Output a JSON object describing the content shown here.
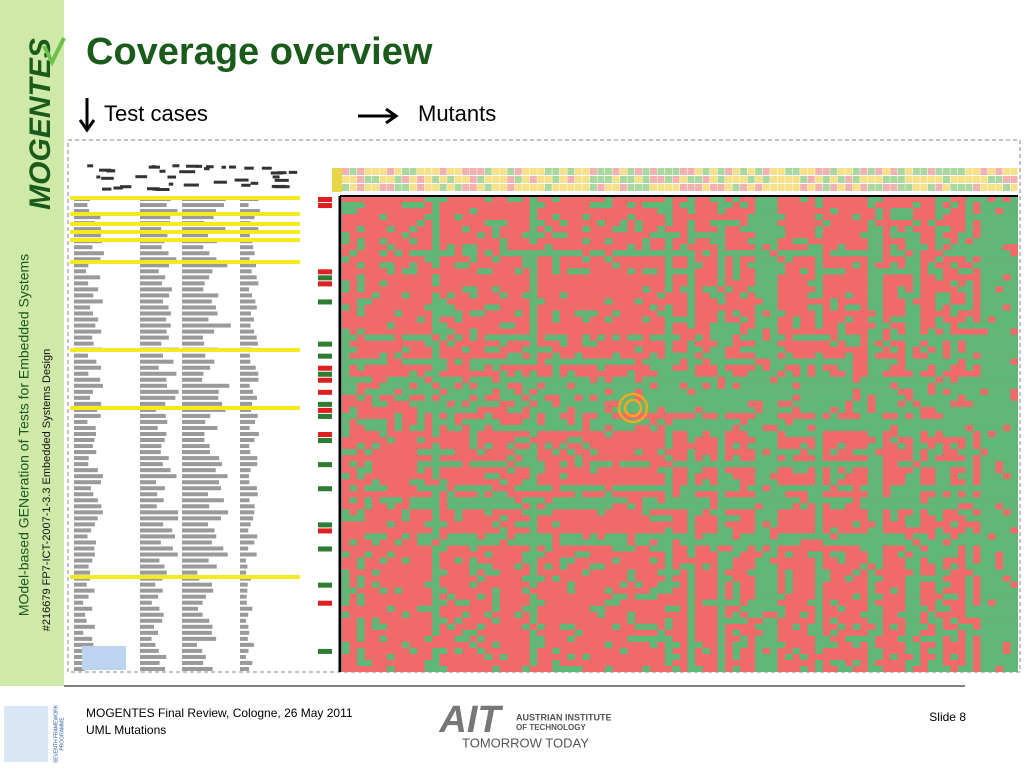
{
  "header": {
    "title": "Coverage overview"
  },
  "legend": {
    "rows": "Test cases",
    "columns": "Mutants"
  },
  "sidebar": {
    "logo": "MOGENTES",
    "project": "MOdel-based GENeration of Tests for Embedded Systems",
    "grant": "#216679 FP7-ICT-2007-1-3.3 Embedded Systems Design"
  },
  "footer": {
    "event": "MOGENTES Final Review, Cologne, 26 May 2011",
    "topic": "UML Mutations",
    "slide": "Slide 8",
    "ait_mark": "AIT",
    "ait_name_1": "AUSTRIAN INSTITUTE",
    "ait_name_2": "OF TECHNOLOGY",
    "ait_slogan": "TOMORROW TODAY",
    "fp7_1": "SEVENTH FRAMEWORK",
    "fp7_2": "PROGRAMME"
  }
}
